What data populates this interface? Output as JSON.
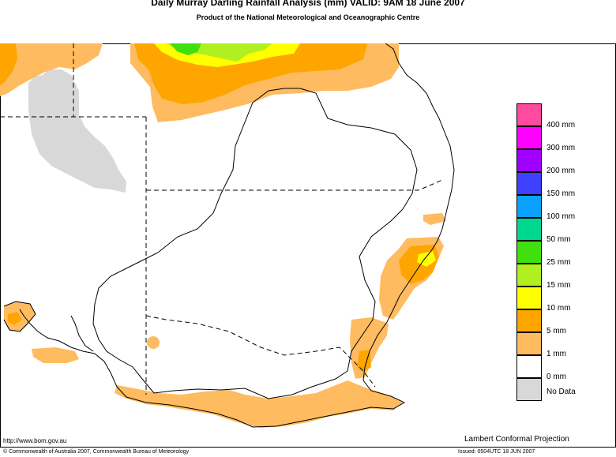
{
  "header": {
    "title": "Daily Murray Darling Rainfall Analysis (mm)  VALID: 9AM 18 June 2007",
    "subtitle": "Product of the National Meteorological and Oceanographic Centre"
  },
  "legend": {
    "items": [
      {
        "label": "400 mm",
        "color": "#ff4aa0"
      },
      {
        "label": "300 mm",
        "color": "#ff00ff"
      },
      {
        "label": "200 mm",
        "color": "#a000ff"
      },
      {
        "label": "150 mm",
        "color": "#4040ff"
      },
      {
        "label": "100 mm",
        "color": "#0aa0ff"
      },
      {
        "label": "50 mm",
        "color": "#00d890"
      },
      {
        "label": "25 mm",
        "color": "#40e010"
      },
      {
        "label": "15 mm",
        "color": "#b0f020"
      },
      {
        "label": "10 mm",
        "color": "#ffff00"
      },
      {
        "label": "5 mm",
        "color": "#ffa500"
      },
      {
        "label": "1 mm",
        "color": "#ffbb60"
      },
      {
        "label": "0 mm",
        "color": "#ffffff"
      },
      {
        "label": "No Data",
        "color": "#d8d8d8"
      }
    ]
  },
  "footer": {
    "url": "http://www.bom.gov.au",
    "projection": "Lambert Conformal Projection",
    "copyright": "© Commonwealth of Australia 2007, Commonwealth Bureau of Meteorology",
    "issued": "Issued: 0504UTC 18 JUN 2007"
  }
}
